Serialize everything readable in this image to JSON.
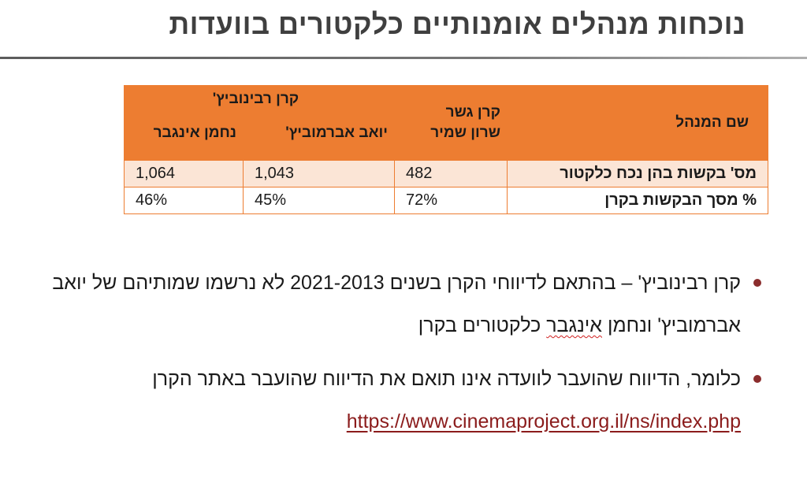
{
  "slide": {
    "title": "נוכחות מנהלים אומנותיים כלקטורים בוועדות"
  },
  "table": {
    "header": {
      "name_col": "שם המנהל",
      "gesher_fund": "קרן גשר",
      "gesher_manager": "שרון שמיר",
      "rabinovich_fund": "קרן רבינוביץ'",
      "rabinovich_manager_1": "יואב אברמוביץ'",
      "rabinovich_manager_2": "נחמן אינגבר"
    },
    "rows": [
      {
        "label": "מס' בקשות בהן נכח כלקטור",
        "sharon": "482",
        "yoav": "1,043",
        "nachman": "1,064"
      },
      {
        "label": "% מסך הבקשות בקרן",
        "sharon": "72%",
        "yoav": "45%",
        "nachman": "46%"
      }
    ],
    "colors": {
      "header_bg": "#ed7d31",
      "row_tint": "#fbe5d6",
      "border": "#ed7d31"
    }
  },
  "bullets": {
    "item1_before": "קרן רבינוביץ' – בהתאם לדיווחי הקרן בשנים 2021-2013 לא נרשמו שמותיהם של יואב אברמוביץ' ונחמן ",
    "item1_flagged_word": "אינגבר",
    "item1_after": " כלקטורים בקרן",
    "item2_text": "כלומר, הדיווח שהועבר לוועדה אינו תואם את הדיווח שהועבר באתר הקרן",
    "item2_link": "https://www.cinemaproject.org.il/ns/index.php",
    "bullet_color": "#8b2d2d",
    "link_color": "#8b1c1c"
  }
}
